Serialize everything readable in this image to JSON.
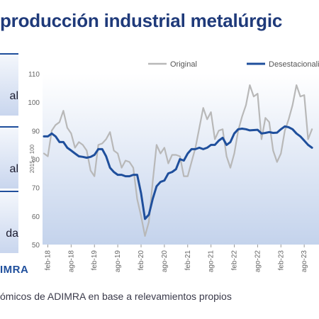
{
  "header": {
    "title": "producción industrial metalúrgic"
  },
  "cards": [
    {
      "label": "al"
    },
    {
      "label": "al"
    },
    {
      "label": "da"
    }
  ],
  "logo": {
    "text": "IMRA"
  },
  "footer": {
    "source": "ómicos de ADIMRA en base a relevamientos propios"
  },
  "colors": {
    "original": "#b8b8b8",
    "seasonal": "#1f4f9c",
    "title": "#1f3a7a",
    "area_top": "#ffffff",
    "area_bottom": "#c4d3ec"
  },
  "chart_data": {
    "type": "line",
    "title": "",
    "xlabel": "",
    "ylabel": "2015 = 100",
    "ylim": [
      50,
      110
    ],
    "yticks": [
      50,
      60,
      70,
      80,
      90,
      100,
      110
    ],
    "grid": false,
    "legend": "top",
    "xtick_labels": [
      "feb-18",
      "ago-18",
      "feb-19",
      "ago-19",
      "feb-20",
      "ago-20",
      "feb-21",
      "ago-21",
      "feb-22",
      "ago-22",
      "feb-23",
      "ago-23"
    ],
    "x_start": "2018-01",
    "series": [
      {
        "name": "Original",
        "values": [
          82,
          81,
          90,
          92,
          93,
          97,
          91,
          89,
          84,
          86,
          85,
          83,
          76,
          74,
          85,
          85.5,
          87,
          89.5,
          83,
          82,
          77,
          79.5,
          79,
          77,
          66,
          60,
          53,
          58,
          72,
          85,
          82,
          84,
          78.5,
          81.5,
          81.5,
          81,
          74,
          74,
          79,
          84,
          91,
          98,
          94,
          96.5,
          87,
          90,
          90.5,
          81,
          77,
          82,
          90,
          95,
          99,
          106,
          102,
          103,
          87,
          94.5,
          93,
          83,
          79,
          82,
          90,
          94,
          99,
          106,
          102,
          102.5,
          87,
          90.5
        ]
      },
      {
        "name": "Desestacionalizada",
        "values": [
          88,
          88,
          89,
          88,
          86,
          86,
          84,
          83,
          82,
          81,
          80.8,
          80.5,
          80.8,
          81.5,
          83.5,
          83.5,
          81,
          77,
          75.5,
          74.5,
          74.5,
          74,
          74,
          74.5,
          74.5,
          68,
          59,
          60.5,
          66,
          70.5,
          72,
          72.5,
          75,
          75.5,
          76.5,
          80,
          79.5,
          82,
          83.5,
          83.5,
          84,
          83.5,
          84,
          85,
          85,
          86.5,
          87.5,
          85,
          86,
          89,
          90.5,
          90.7,
          90.5,
          90.1,
          90.2,
          90.3,
          89,
          89.2,
          89.5,
          89.2,
          89.3,
          90.5,
          91.5,
          91.2,
          90.5,
          89,
          88,
          86.5,
          85,
          84
        ]
      }
    ]
  }
}
